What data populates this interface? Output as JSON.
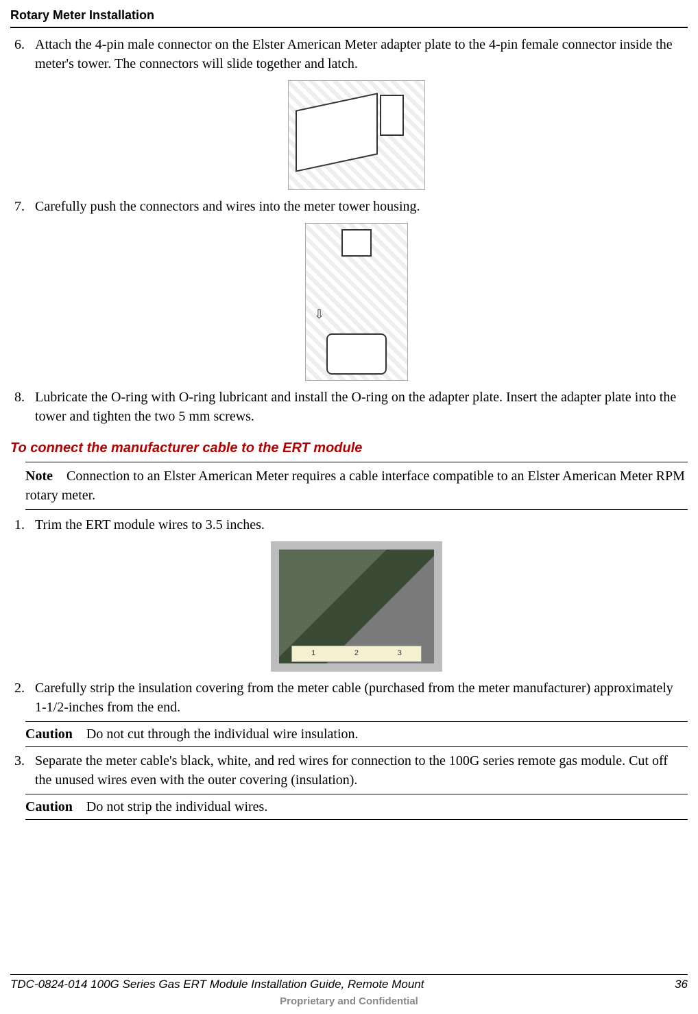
{
  "header": {
    "title": "Rotary Meter Installation"
  },
  "steps_a": [
    {
      "num": "6.",
      "text": "Attach the 4-pin male connector on the Elster American Meter adapter plate to the 4-pin female connector inside the meter's tower. The connectors will slide together and latch."
    },
    {
      "num": "7.",
      "text": "Carefully push the connectors and wires into the meter tower housing."
    },
    {
      "num": "8.",
      "text": "Lubricate the O-ring with O-ring lubricant and install the O-ring on the adapter plate. Insert the adapter plate into the tower and tighten the two 5 mm screws."
    }
  ],
  "section": {
    "title": "To connect the manufacturer cable to the ERT module"
  },
  "note": {
    "label": "Note",
    "text": "Connection to an Elster American Meter requires a cable interface compatible to an Elster American Meter RPM rotary meter."
  },
  "steps_b": [
    {
      "num": "1.",
      "text": "Trim the ERT module wires to 3.5 inches."
    },
    {
      "num": "2.",
      "text": "Carefully strip the insulation covering from the meter cable (purchased from the meter manufacturer) approximately 1-1/2-inches from the end."
    },
    {
      "num": "3.",
      "text": "Separate the meter cable's black, white, and red wires for connection to the 100G series remote gas module. Cut off the unused wires even with the outer covering (insulation)."
    }
  ],
  "cautions": [
    {
      "label": "Caution",
      "text": "Do not cut through the individual wire insulation."
    },
    {
      "label": "Caution",
      "text": "Do not strip the individual wires."
    }
  ],
  "ruler": {
    "t1": "1",
    "t2": "2",
    "t3": "3"
  },
  "footer": {
    "doc": "TDC-0824-014 100G Series Gas ERT Module Installation Guide, Remote Mount",
    "page": "36",
    "confidential": "Proprietary and Confidential"
  }
}
